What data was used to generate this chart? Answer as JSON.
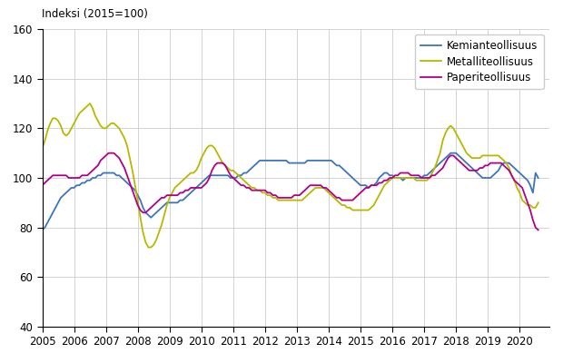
{
  "ylabel": "Indeksi (2015=100)",
  "ylim": [
    40,
    160
  ],
  "xlim": [
    2005.0,
    2020.92
  ],
  "yticks": [
    40,
    60,
    80,
    100,
    120,
    140,
    160
  ],
  "xticks": [
    2005,
    2006,
    2007,
    2008,
    2009,
    2010,
    2011,
    2012,
    2013,
    2014,
    2015,
    2016,
    2017,
    2018,
    2019,
    2020
  ],
  "legend": [
    "Kemianteollisuus",
    "Metalliteollisuus",
    "Paperiteollisuus"
  ],
  "colors": {
    "kemia": "#3d75b8",
    "metalli": "#b8b800",
    "paperi": "#b0008a"
  },
  "kemia": [
    79,
    80,
    82,
    84,
    86,
    88,
    90,
    92,
    93,
    94,
    95,
    96,
    96,
    97,
    97,
    98,
    98,
    99,
    99,
    100,
    100,
    101,
    101,
    102,
    102,
    102,
    102,
    102,
    101,
    101,
    100,
    99,
    98,
    97,
    96,
    95,
    93,
    91,
    88,
    86,
    85,
    84,
    85,
    86,
    87,
    88,
    89,
    90,
    90,
    90,
    90,
    90,
    91,
    91,
    92,
    93,
    94,
    95,
    96,
    97,
    98,
    99,
    100,
    101,
    101,
    101,
    101,
    101,
    101,
    101,
    101,
    100,
    100,
    100,
    101,
    101,
    102,
    102,
    103,
    104,
    105,
    106,
    107,
    107,
    107,
    107,
    107,
    107,
    107,
    107,
    107,
    107,
    107,
    106,
    106,
    106,
    106,
    106,
    106,
    106,
    107,
    107,
    107,
    107,
    107,
    107,
    107,
    107,
    107,
    107,
    106,
    105,
    105,
    104,
    103,
    102,
    101,
    100,
    99,
    98,
    97,
    97,
    97,
    96,
    97,
    97,
    98,
    100,
    101,
    102,
    102,
    101,
    101,
    100,
    100,
    100,
    99,
    100,
    100,
    100,
    100,
    100,
    100,
    100,
    101,
    101,
    102,
    103,
    104,
    105,
    106,
    107,
    108,
    109,
    110,
    110,
    110,
    109,
    108,
    107,
    106,
    105,
    104,
    103,
    102,
    101,
    100,
    100,
    100,
    100,
    101,
    102,
    103,
    105,
    106,
    106,
    106,
    105,
    104,
    103,
    102,
    101,
    100,
    99,
    97,
    94,
    102,
    100
  ],
  "metalli": [
    112,
    115,
    119,
    122,
    124,
    124,
    123,
    121,
    118,
    117,
    118,
    120,
    122,
    124,
    126,
    127,
    128,
    129,
    130,
    128,
    125,
    123,
    121,
    120,
    120,
    121,
    122,
    122,
    121,
    120,
    118,
    116,
    113,
    108,
    103,
    97,
    91,
    84,
    78,
    74,
    72,
    72,
    73,
    75,
    78,
    81,
    85,
    89,
    92,
    94,
    96,
    97,
    98,
    99,
    100,
    101,
    102,
    102,
    103,
    105,
    108,
    110,
    112,
    113,
    113,
    112,
    110,
    108,
    106,
    105,
    104,
    103,
    103,
    102,
    101,
    100,
    99,
    98,
    97,
    96,
    96,
    95,
    95,
    94,
    94,
    93,
    93,
    92,
    92,
    91,
    91,
    91,
    91,
    91,
    91,
    91,
    91,
    91,
    91,
    92,
    93,
    94,
    95,
    96,
    96,
    96,
    96,
    95,
    94,
    93,
    92,
    91,
    90,
    89,
    89,
    88,
    88,
    87,
    87,
    87,
    87,
    87,
    87,
    87,
    88,
    89,
    91,
    93,
    95,
    97,
    98,
    99,
    100,
    100,
    100,
    100,
    100,
    100,
    100,
    100,
    100,
    99,
    99,
    99,
    99,
    99,
    100,
    102,
    104,
    107,
    110,
    115,
    118,
    120,
    121,
    120,
    118,
    116,
    114,
    112,
    110,
    109,
    108,
    108,
    108,
    108,
    109,
    109,
    109,
    109,
    109,
    109,
    109,
    108,
    107,
    106,
    104,
    101,
    99,
    96,
    94,
    91,
    90,
    89,
    89,
    88,
    88,
    90
  ],
  "paperi": [
    97,
    98,
    99,
    100,
    101,
    101,
    101,
    101,
    101,
    101,
    100,
    100,
    100,
    100,
    100,
    101,
    101,
    101,
    102,
    103,
    104,
    105,
    107,
    108,
    109,
    110,
    110,
    110,
    109,
    108,
    106,
    104,
    101,
    98,
    95,
    92,
    89,
    87,
    86,
    86,
    87,
    88,
    89,
    90,
    91,
    92,
    92,
    93,
    93,
    93,
    93,
    93,
    94,
    94,
    95,
    95,
    96,
    96,
    96,
    96,
    96,
    97,
    98,
    100,
    103,
    105,
    106,
    106,
    106,
    105,
    103,
    101,
    100,
    99,
    98,
    97,
    97,
    96,
    96,
    95,
    95,
    95,
    95,
    95,
    95,
    94,
    94,
    93,
    93,
    92,
    92,
    92,
    92,
    92,
    92,
    93,
    93,
    93,
    94,
    95,
    96,
    97,
    97,
    97,
    97,
    97,
    96,
    96,
    95,
    94,
    93,
    92,
    92,
    91,
    91,
    91,
    91,
    91,
    92,
    93,
    94,
    95,
    96,
    96,
    97,
    97,
    97,
    98,
    98,
    99,
    99,
    100,
    100,
    101,
    101,
    102,
    102,
    102,
    102,
    101,
    101,
    101,
    101,
    100,
    100,
    100,
    100,
    101,
    101,
    102,
    103,
    104,
    106,
    108,
    109,
    109,
    108,
    107,
    106,
    105,
    104,
    103,
    103,
    103,
    103,
    104,
    104,
    105,
    105,
    106,
    106,
    106,
    106,
    106,
    105,
    104,
    103,
    101,
    99,
    98,
    97,
    96,
    93,
    90,
    87,
    83,
    80,
    79
  ]
}
